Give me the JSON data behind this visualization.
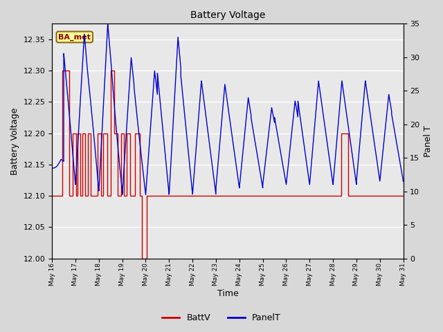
{
  "title": "Battery Voltage",
  "xlabel": "Time",
  "ylabel_left": "Battery Voltage",
  "ylabel_right": "Panel T",
  "ylim_left": [
    12.0,
    12.375
  ],
  "ylim_right": [
    0,
    35
  ],
  "yticks_left": [
    12.0,
    12.05,
    12.1,
    12.15,
    12.2,
    12.25,
    12.3,
    12.35
  ],
  "yticks_right": [
    0,
    5,
    10,
    15,
    20,
    25,
    30,
    35
  ],
  "fig_bg_color": "#d8d8d8",
  "plot_bg_color": "#e8e8e8",
  "annotation_label": "BA_met",
  "annotation_bg": "#ffff99",
  "annotation_border": "#8B6914",
  "legend_items": [
    "BattV",
    "PanelT"
  ],
  "batt_color": "#cc0000",
  "panel_color": "#0000cc",
  "xtick_labels": [
    "May 16",
    "May 17",
    "May 18",
    "May 19",
    "May 20",
    "May 21",
    "May 22",
    "May 23",
    "May 24",
    "May 25",
    "May 26",
    "May 27",
    "May 28",
    "May 29",
    "May 30",
    "May 31"
  ],
  "grid_color": "#ffffff",
  "num_days": 15
}
